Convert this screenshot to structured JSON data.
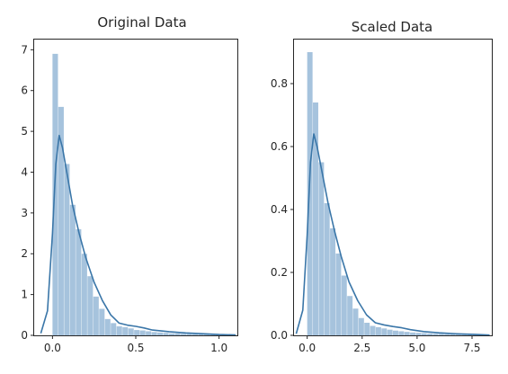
{
  "colors": {
    "bar": "#a6c3dd",
    "kde": "#3a76a8"
  },
  "chart_data": [
    {
      "type": "bar",
      "title": "Original Data",
      "xlabel": "",
      "ylabel": "",
      "xlim": [
        -0.11,
        1.11
      ],
      "ylim": [
        0,
        7.25
      ],
      "xticks": [
        0.0,
        0.5,
        1.0
      ],
      "xtick_labels": [
        "0.0",
        "0.5",
        "1.0"
      ],
      "yticks": [
        0,
        1,
        2,
        3,
        4,
        5,
        6,
        7
      ],
      "ytick_labels": [
        "0",
        "1",
        "2",
        "3",
        "4",
        "5",
        "6",
        "7"
      ],
      "bin_edges": [
        0.0,
        0.035,
        0.07,
        0.105,
        0.14,
        0.175,
        0.21,
        0.245,
        0.28,
        0.315,
        0.35,
        0.385,
        0.42,
        0.455,
        0.49,
        0.525,
        0.56,
        0.595,
        0.63,
        0.665,
        0.7,
        0.735,
        0.77,
        0.805,
        0.84,
        0.875,
        0.91,
        0.945,
        0.98,
        1.015,
        1.05
      ],
      "bar_heights": [
        6.9,
        5.6,
        4.2,
        3.2,
        2.6,
        2.0,
        1.45,
        0.95,
        0.65,
        0.4,
        0.3,
        0.22,
        0.2,
        0.17,
        0.13,
        0.12,
        0.1,
        0.08,
        0.07,
        0.06,
        0.05,
        0.05,
        0.04,
        0.04,
        0.03,
        0.03,
        0.03,
        0.02,
        0.02,
        0.02
      ],
      "kde": {
        "x": [
          -0.07,
          -0.03,
          0.0,
          0.02,
          0.04,
          0.06,
          0.09,
          0.12,
          0.16,
          0.2,
          0.25,
          0.3,
          0.35,
          0.4,
          0.45,
          0.5,
          0.55,
          0.6,
          0.7,
          0.8,
          0.9,
          1.0,
          1.1
        ],
        "y": [
          0.05,
          0.6,
          2.5,
          4.2,
          4.9,
          4.6,
          3.9,
          3.2,
          2.5,
          1.9,
          1.3,
          0.85,
          0.5,
          0.3,
          0.25,
          0.22,
          0.18,
          0.13,
          0.09,
          0.06,
          0.04,
          0.02,
          0.01
        ]
      }
    },
    {
      "type": "bar",
      "title": "Scaled Data",
      "xlabel": "",
      "ylabel": "",
      "xlim": [
        -0.6,
        8.4
      ],
      "ylim": [
        0,
        0.94
      ],
      "xticks": [
        0.0,
        2.5,
        5.0,
        7.5
      ],
      "xtick_labels": [
        "0.0",
        "2.5",
        "5.0",
        "7.5"
      ],
      "yticks": [
        0.0,
        0.2,
        0.4,
        0.6,
        0.8
      ],
      "ytick_labels": [
        "0.0",
        "0.2",
        "0.4",
        "0.6",
        "0.8"
      ],
      "bin_edges": [
        0.0,
        0.26,
        0.52,
        0.78,
        1.04,
        1.3,
        1.56,
        1.82,
        2.08,
        2.34,
        2.6,
        2.86,
        3.12,
        3.38,
        3.64,
        3.9,
        4.16,
        4.42,
        4.68,
        4.94,
        5.2,
        5.46,
        5.72,
        5.98,
        6.24,
        6.5,
        6.76,
        7.02,
        7.28,
        7.54,
        7.8
      ],
      "bar_heights": [
        0.9,
        0.74,
        0.55,
        0.42,
        0.34,
        0.26,
        0.19,
        0.125,
        0.085,
        0.055,
        0.04,
        0.03,
        0.026,
        0.022,
        0.018,
        0.015,
        0.013,
        0.011,
        0.009,
        0.008,
        0.007,
        0.006,
        0.005,
        0.005,
        0.004,
        0.004,
        0.003,
        0.003,
        0.002,
        0.002
      ],
      "kde": {
        "x": [
          -0.5,
          -0.2,
          0.0,
          0.15,
          0.3,
          0.45,
          0.7,
          0.95,
          1.25,
          1.55,
          1.9,
          2.3,
          2.7,
          3.1,
          3.5,
          3.9,
          4.3,
          4.7,
          5.3,
          6.0,
          6.8,
          7.6,
          8.3
        ],
        "y": [
          0.005,
          0.08,
          0.32,
          0.55,
          0.64,
          0.6,
          0.51,
          0.42,
          0.33,
          0.25,
          0.17,
          0.11,
          0.065,
          0.04,
          0.033,
          0.028,
          0.024,
          0.018,
          0.012,
          0.008,
          0.005,
          0.003,
          0.001
        ]
      }
    }
  ]
}
